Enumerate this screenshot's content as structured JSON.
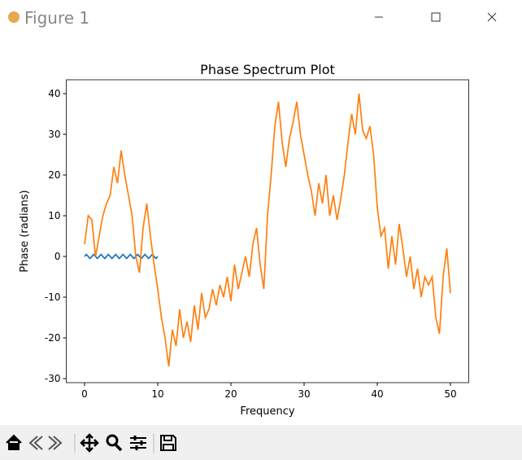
{
  "window": {
    "title": "Figure 1"
  },
  "chart_data": {
    "type": "line",
    "title": "Phase Spectrum Plot",
    "x_label": "Frequency",
    "y_label": "Phase (radians)",
    "xlim": [
      -2.5,
      52.5
    ],
    "ylim": [
      -31,
      43.4
    ],
    "xticks": [
      0,
      10,
      20,
      30,
      40,
      50
    ],
    "yticks": [
      -30,
      -20,
      -10,
      0,
      10,
      20,
      30,
      40
    ],
    "grid": false,
    "series": [
      {
        "color": "#1f77b4",
        "x": [
          0,
          0.25,
          0.5,
          0.75,
          1,
          1.25,
          1.5,
          1.75,
          2,
          2.25,
          2.5,
          2.75,
          3,
          3.25,
          3.5,
          3.75,
          4,
          4.25,
          4.5,
          4.75,
          5,
          5.25,
          5.5,
          5.75,
          6,
          6.25,
          6.5,
          6.75,
          7,
          7.25,
          7.5,
          7.75,
          8,
          8.25,
          8.5,
          8.75,
          9,
          9.25,
          9.5,
          9.75,
          10
        ],
        "values": [
          0,
          0.5,
          0,
          -0.5,
          0,
          0.5,
          0,
          -0.5,
          0,
          0.5,
          0,
          -0.5,
          0,
          0.5,
          0,
          -0.5,
          0,
          0.5,
          0,
          -0.5,
          0,
          0.5,
          0,
          -0.5,
          0,
          0.5,
          0,
          -0.5,
          0,
          0.5,
          0,
          -0.5,
          0,
          0.5,
          0,
          -0.5,
          0,
          0.5,
          0,
          -0.5,
          0
        ]
      },
      {
        "color": "#ff7f0e",
        "x": [
          0,
          0.5,
          1,
          1.5,
          2,
          2.5,
          3,
          3.5,
          4,
          4.5,
          5,
          5.5,
          6,
          6.5,
          7,
          7.5,
          8,
          8.5,
          9,
          9.5,
          10,
          10.5,
          11,
          11.5,
          12,
          12.5,
          13,
          13.5,
          14,
          14.5,
          15,
          15.5,
          16,
          16.5,
          17,
          17.5,
          18,
          18.5,
          19,
          19.5,
          20,
          20.5,
          21,
          21.5,
          22,
          22.5,
          23,
          23.5,
          24,
          24.5,
          25,
          25.5,
          26,
          26.5,
          27,
          27.5,
          28,
          28.5,
          29,
          29.5,
          30,
          30.5,
          31,
          31.5,
          32,
          32.5,
          33,
          33.5,
          34,
          34.5,
          35,
          35.5,
          36,
          36.5,
          37,
          37.5,
          38,
          38.5,
          39,
          39.5,
          40,
          40.5,
          41,
          41.5,
          42,
          42.5,
          43,
          43.5,
          44,
          44.5,
          45,
          45.5,
          46,
          46.5,
          47,
          47.5,
          48,
          48.5,
          49,
          49.5,
          50
        ],
        "values": [
          3,
          10,
          9,
          0,
          5,
          10,
          13,
          15,
          22,
          18,
          26,
          20,
          15,
          10,
          0,
          -4,
          7,
          13,
          5,
          -2,
          -8,
          -15,
          -20,
          -27,
          -18,
          -22,
          -13,
          -20,
          -16,
          -21,
          -12,
          -18,
          -9,
          -15,
          -13,
          -8,
          -12,
          -7,
          -10,
          -5,
          -11,
          -2,
          -8,
          -4,
          0,
          -5,
          3,
          7,
          -2,
          -8,
          10,
          20,
          32,
          38,
          28,
          22,
          29,
          33,
          38,
          30,
          25,
          20,
          16,
          10,
          18,
          13,
          20,
          10,
          15,
          9,
          14,
          20,
          28,
          35,
          30,
          40,
          31,
          29,
          32,
          25,
          12,
          5,
          7,
          -3,
          5,
          -2,
          8,
          2,
          -5,
          0,
          -8,
          -3,
          -10,
          -5,
          -7,
          -5,
          -15,
          -19,
          -5,
          2,
          -9
        ]
      }
    ]
  }
}
